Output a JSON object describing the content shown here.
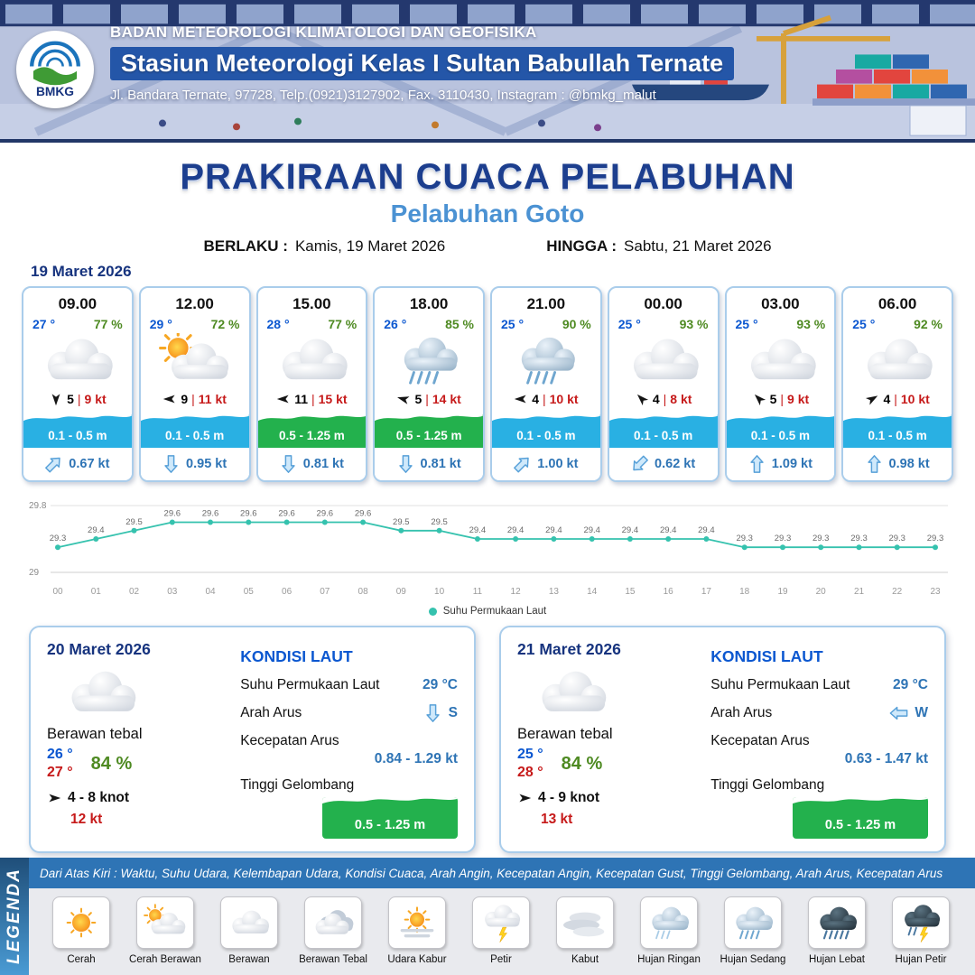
{
  "header": {
    "logo": "BMKG",
    "agency": "BADAN METEOROLOGI KLIMATOLOGI DAN GEOFISIKA",
    "station": "Stasiun Meteorologi Kelas I Sultan Babullah Ternate",
    "address": "Jl. Bandara Ternate, 97728, Telp.(0921)3127902, Fax. 3110430, Instagram : @bmkg_malut"
  },
  "title": {
    "main": "PRAKIRAAN CUACA PELABUHAN",
    "subtitle": "Pelabuhan Goto",
    "valid_from_label": "BERLAKU :",
    "valid_from": "Kamis, 19 Maret 2026",
    "valid_to_label": "HINGGA :",
    "valid_to": "Sabtu, 21 Maret 2026"
  },
  "hourly": {
    "date": "19 Maret 2026",
    "sep": "|",
    "cards": [
      {
        "time": "09.00",
        "temp": "27 °",
        "humidity": "77 %",
        "icon": "cloud",
        "wind_deg": 180,
        "wind": "5",
        "gust": "9 kt",
        "wave": "0.1 - 0.5 m",
        "wave_color": "#29b0e3",
        "current_deg": 45,
        "current": "0.67 kt"
      },
      {
        "time": "12.00",
        "temp": "29 °",
        "humidity": "72 %",
        "icon": "sun-cloud",
        "wind_deg": 270,
        "wind": "9",
        "gust": "11 kt",
        "wave": "0.1 - 0.5 m",
        "wave_color": "#29b0e3",
        "current_deg": 180,
        "current": "0.95 kt"
      },
      {
        "time": "15.00",
        "temp": "28 °",
        "humidity": "77 %",
        "icon": "cloud",
        "wind_deg": 270,
        "wind": "11",
        "gust": "15 kt",
        "wave": "0.5 - 1.25 m",
        "wave_color": "#23b14d",
        "current_deg": 180,
        "current": "0.81 kt"
      },
      {
        "time": "18.00",
        "temp": "26 °",
        "humidity": "85 %",
        "icon": "rain-moderate",
        "wind_deg": 285,
        "wind": "5",
        "gust": "14 kt",
        "wave": "0.5 - 1.25 m",
        "wave_color": "#23b14d",
        "current_deg": 180,
        "current": "0.81 kt"
      },
      {
        "time": "21.00",
        "temp": "25 °",
        "humidity": "90 %",
        "icon": "rain-moderate",
        "wind_deg": 270,
        "wind": "4",
        "gust": "10 kt",
        "wave": "0.1 - 0.5 m",
        "wave_color": "#29b0e3",
        "current_deg": 45,
        "current": "1.00 kt"
      },
      {
        "time": "00.00",
        "temp": "25 °",
        "humidity": "93 %",
        "icon": "cloud",
        "wind_deg": 315,
        "wind": "4",
        "gust": "8 kt",
        "wave": "0.1 - 0.5 m",
        "wave_color": "#29b0e3",
        "current_deg": 225,
        "current": "0.62 kt"
      },
      {
        "time": "03.00",
        "temp": "25 °",
        "humidity": "93 %",
        "icon": "cloud",
        "wind_deg": 315,
        "wind": "5",
        "gust": "9 kt",
        "wave": "0.1 - 0.5 m",
        "wave_color": "#29b0e3",
        "current_deg": 0,
        "current": "1.09 kt"
      },
      {
        "time": "06.00",
        "temp": "25 °",
        "humidity": "92 %",
        "icon": "cloud",
        "wind_deg": 60,
        "wind": "4",
        "gust": "10 kt",
        "wave": "0.1 - 0.5 m",
        "wave_color": "#29b0e3",
        "current_deg": 0,
        "current": "0.98 kt"
      }
    ]
  },
  "chart_data": {
    "type": "line",
    "x": [
      "00",
      "01",
      "02",
      "03",
      "04",
      "05",
      "06",
      "07",
      "08",
      "09",
      "10",
      "11",
      "12",
      "13",
      "14",
      "15",
      "16",
      "17",
      "18",
      "19",
      "20",
      "21",
      "22",
      "23"
    ],
    "series": [
      {
        "name": "Suhu Permukaan Laut",
        "values": [
          29.3,
          29.4,
          29.5,
          29.6,
          29.6,
          29.6,
          29.6,
          29.6,
          29.6,
          29.5,
          29.5,
          29.4,
          29.4,
          29.4,
          29.4,
          29.4,
          29.4,
          29.4,
          29.3,
          29.3,
          29.3,
          29.3,
          29.3,
          29.3
        ]
      }
    ],
    "ylim": [
      29,
      29.8
    ],
    "line_color": "#35c2ae",
    "grid": true,
    "legend_position": "bottom"
  },
  "daily": [
    {
      "date": "20 Maret 2026",
      "icon": "cloud",
      "condition": "Berawan tebal",
      "temp_min": "26 °",
      "temp_max": "27 °",
      "humidity": "84 %",
      "wind_deg": 90,
      "wind": "4 - 8 knot",
      "gust": "12 kt",
      "sea": {
        "title": "KONDISI LAUT",
        "sst_label": "Suhu Permukaan Laut",
        "sst_value": "29 °C",
        "current_dir_label": "Arah Arus",
        "current_dir_value": "S",
        "current_dir_deg": 180,
        "current_speed_label": "Kecepatan Arus",
        "current_speed_value": "0.84 - 1.29 kt",
        "wave_label": "Tinggi Gelombang",
        "wave_value": "0.5 - 1.25 m",
        "wave_color": "#23b14d"
      }
    },
    {
      "date": "21 Maret 2026",
      "icon": "cloud",
      "condition": "Berawan tebal",
      "temp_min": "25 °",
      "temp_max": "28 °",
      "humidity": "84 %",
      "wind_deg": 90,
      "wind": "4 - 9 knot",
      "gust": "13 kt",
      "sea": {
        "title": "KONDISI LAUT",
        "sst_label": "Suhu Permukaan Laut",
        "sst_value": "29 °C",
        "current_dir_label": "Arah Arus",
        "current_dir_value": "W",
        "current_dir_deg": 270,
        "current_speed_label": "Kecepatan Arus",
        "current_speed_value": "0.63 - 1.47 kt",
        "wave_label": "Tinggi Gelombang",
        "wave_value": "0.5 - 1.25 m",
        "wave_color": "#23b14d"
      }
    }
  ],
  "legend": {
    "title": "LEGENDA",
    "description": "Dari Atas Kiri : Waktu, Suhu Udara, Kelembapan Udara, Kondisi Cuaca, Arah Angin, Kecepatan Angin, Kecepatan Gust, Tinggi Gelombang, Arah Arus, Kecepatan Arus",
    "items": [
      {
        "label": "Cerah",
        "icon": "sun"
      },
      {
        "label": "Cerah Berawan",
        "icon": "sun-cloud"
      },
      {
        "label": "Berawan",
        "icon": "cloud"
      },
      {
        "label": "Berawan Tebal",
        "icon": "cloud-thick"
      },
      {
        "label": "Udara Kabur",
        "icon": "haze"
      },
      {
        "label": "Petir",
        "icon": "lightning"
      },
      {
        "label": "Kabut",
        "icon": "fog"
      },
      {
        "label": "Hujan Ringan",
        "icon": "rain-light"
      },
      {
        "label": "Hujan Sedang",
        "icon": "rain-moderate"
      },
      {
        "label": "Hujan Lebat",
        "icon": "rain-heavy"
      },
      {
        "label": "Hujan Petir",
        "icon": "thunderstorm"
      }
    ]
  },
  "colors": {
    "navy": "#1c3e8e",
    "blue": "#2e74b5",
    "humidity_green": "#4e8a22",
    "red": "#c61a1a",
    "wave_cyan": "#29b0e3",
    "wave_green": "#23b14d"
  }
}
